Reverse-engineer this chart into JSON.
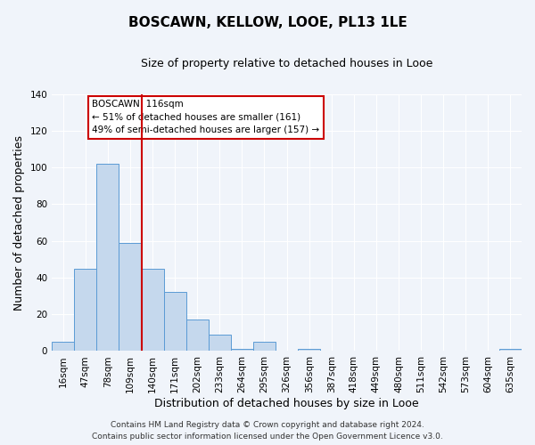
{
  "title": "BOSCAWN, KELLOW, LOOE, PL13 1LE",
  "subtitle": "Size of property relative to detached houses in Looe",
  "xlabel": "Distribution of detached houses by size in Looe",
  "ylabel": "Number of detached properties",
  "bin_labels": [
    "16sqm",
    "47sqm",
    "78sqm",
    "109sqm",
    "140sqm",
    "171sqm",
    "202sqm",
    "233sqm",
    "264sqm",
    "295sqm",
    "326sqm",
    "356sqm",
    "387sqm",
    "418sqm",
    "449sqm",
    "480sqm",
    "511sqm",
    "542sqm",
    "573sqm",
    "604sqm",
    "635sqm"
  ],
  "bar_values": [
    5,
    45,
    102,
    59,
    45,
    32,
    17,
    9,
    1,
    5,
    0,
    1,
    0,
    0,
    0,
    0,
    0,
    0,
    0,
    0,
    1
  ],
  "ylim": [
    0,
    140
  ],
  "yticks": [
    0,
    20,
    40,
    60,
    80,
    100,
    120,
    140
  ],
  "bar_color": "#c5d8ed",
  "bar_edge_color": "#5b9bd5",
  "vline_x": 3.5,
  "vline_color": "#cc0000",
  "annotation_title": "BOSCAWN: 116sqm",
  "annotation_line2": "← 51% of detached houses are smaller (161)",
  "annotation_line3": "49% of semi-detached houses are larger (157) →",
  "annotation_box_color": "#cc0000",
  "footer_line1": "Contains HM Land Registry data © Crown copyright and database right 2024.",
  "footer_line2": "Contains public sector information licensed under the Open Government Licence v3.0.",
  "background_color": "#f0f4fa",
  "grid_color": "#ffffff",
  "title_fontsize": 11,
  "subtitle_fontsize": 9,
  "axis_label_fontsize": 9,
  "tick_fontsize": 7.5,
  "footer_fontsize": 6.5
}
